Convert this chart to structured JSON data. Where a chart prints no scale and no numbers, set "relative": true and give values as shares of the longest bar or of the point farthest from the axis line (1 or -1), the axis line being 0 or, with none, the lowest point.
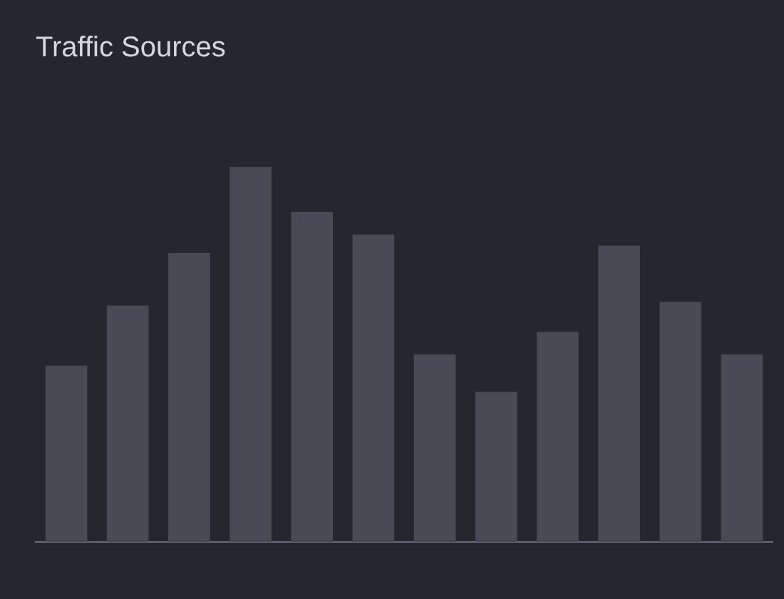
{
  "chart_data": {
    "type": "bar",
    "title": "Traffic Sources",
    "categories": [
      null,
      null,
      null,
      null,
      null,
      null,
      null,
      null,
      null,
      null,
      null,
      null
    ],
    "values": [
      0.47,
      0.63,
      0.77,
      1,
      0.88,
      0.82,
      0.5,
      0.4,
      0.56,
      0.79,
      0.64,
      0.5
    ],
    "color": "#4a4a56",
    "relative": true
  }
}
